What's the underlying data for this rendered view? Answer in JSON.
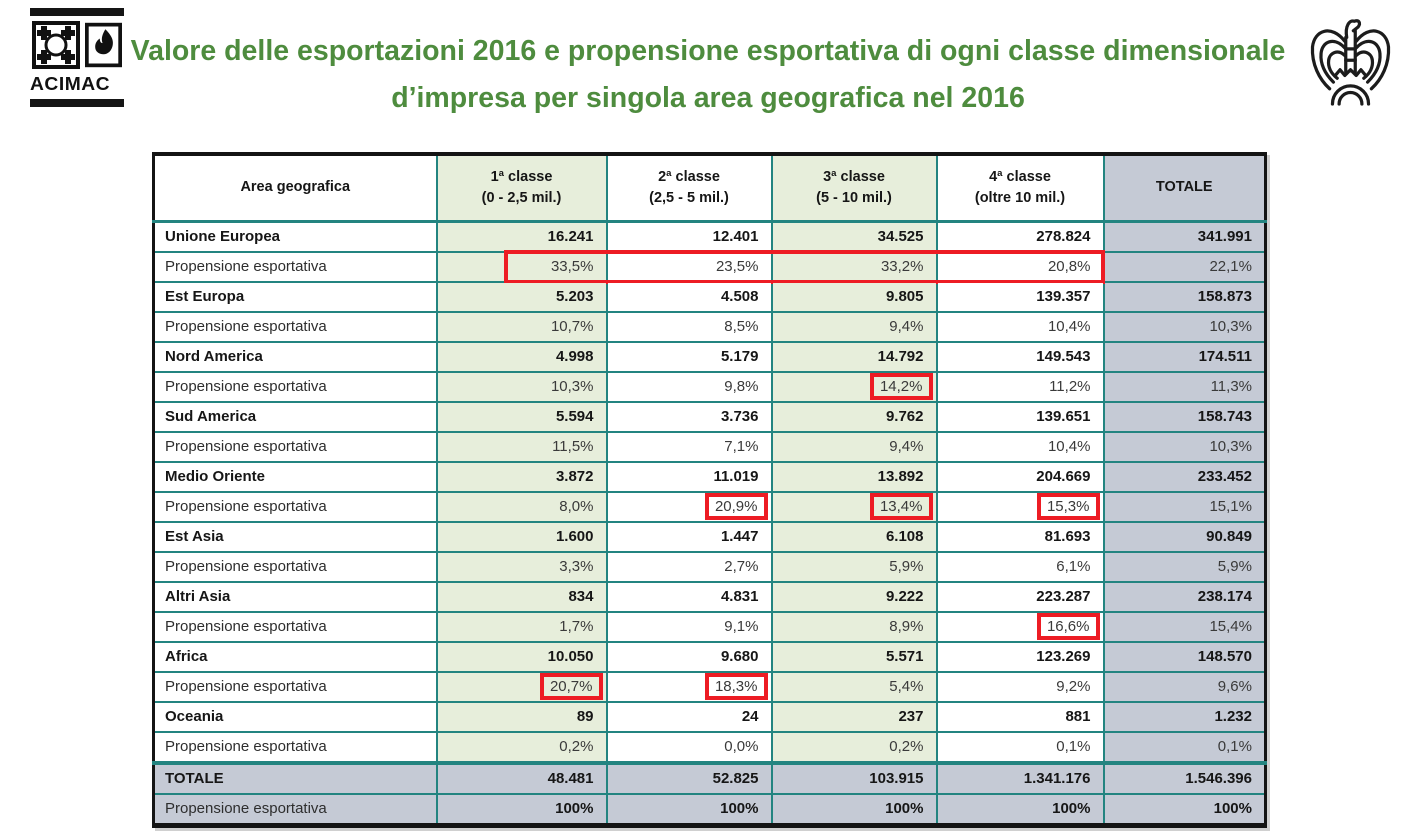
{
  "title": "Valore delle esportazioni 2016 e propensione esportativa di ogni classe dimensionale d’impresa per singola area geografica nel 2016",
  "branding": {
    "acimac_label": "ACIMAC",
    "acimac_icon": "acimac-tile-and-flame-logo",
    "confindustria_icon": "confindustria-eagle-logo"
  },
  "colors": {
    "title_green": "#4e8c3e",
    "cell_green": "#e7eedb",
    "cell_gray": "#c5cad5",
    "grid_teal": "#238480",
    "highlight_red": "#ed1c24"
  },
  "table": {
    "columns": [
      {
        "label": "Area geografica",
        "sub": ""
      },
      {
        "label": "1ª classe",
        "sub": "(0 - 2,5 mil.)"
      },
      {
        "label": "2ª classe",
        "sub": "(2,5 - 5 mil.)"
      },
      {
        "label": "3ª classe",
        "sub": "(5 - 10 mil.)"
      },
      {
        "label": "4ª classe",
        "sub": "(oltre 10 mil.)"
      },
      {
        "label": "TOTALE",
        "sub": ""
      }
    ],
    "propensity_label": "Propensione esportativa",
    "areas": [
      {
        "name": "Unione Europea",
        "values": [
          "16.241",
          "12.401",
          "34.525",
          "278.824",
          "341.991"
        ],
        "propensity": [
          "33,5%",
          "23,5%",
          "33,2%",
          "20,8%",
          "22,1%"
        ],
        "highlight_span": true,
        "highlights": []
      },
      {
        "name": "Est Europa",
        "values": [
          "5.203",
          "4.508",
          "9.805",
          "139.357",
          "158.873"
        ],
        "propensity": [
          "10,7%",
          "8,5%",
          "9,4%",
          "10,4%",
          "10,3%"
        ],
        "highlight_span": false,
        "highlights": []
      },
      {
        "name": "Nord America",
        "values": [
          "4.998",
          "5.179",
          "14.792",
          "149.543",
          "174.511"
        ],
        "propensity": [
          "10,3%",
          "9,8%",
          "14,2%",
          "11,2%",
          "11,3%"
        ],
        "highlight_span": false,
        "highlights": [
          2
        ]
      },
      {
        "name": "Sud America",
        "values": [
          "5.594",
          "3.736",
          "9.762",
          "139.651",
          "158.743"
        ],
        "propensity": [
          "11,5%",
          "7,1%",
          "9,4%",
          "10,4%",
          "10,3%"
        ],
        "highlight_span": false,
        "highlights": []
      },
      {
        "name": "Medio Oriente",
        "values": [
          "3.872",
          "11.019",
          "13.892",
          "204.669",
          "233.452"
        ],
        "propensity": [
          "8,0%",
          "20,9%",
          "13,4%",
          "15,3%",
          "15,1%"
        ],
        "highlight_span": false,
        "highlights": [
          1,
          2,
          3
        ]
      },
      {
        "name": "Est Asia",
        "values": [
          "1.600",
          "1.447",
          "6.108",
          "81.693",
          "90.849"
        ],
        "propensity": [
          "3,3%",
          "2,7%",
          "5,9%",
          "6,1%",
          "5,9%"
        ],
        "highlight_span": false,
        "highlights": []
      },
      {
        "name": "Altri Asia",
        "values": [
          "834",
          "4.831",
          "9.222",
          "223.287",
          "238.174"
        ],
        "propensity": [
          "1,7%",
          "9,1%",
          "8,9%",
          "16,6%",
          "15,4%"
        ],
        "highlight_span": false,
        "highlights": [
          3
        ]
      },
      {
        "name": "Africa",
        "values": [
          "10.050",
          "9.680",
          "5.571",
          "123.269",
          "148.570"
        ],
        "propensity": [
          "20,7%",
          "18,3%",
          "5,4%",
          "9,2%",
          "9,6%"
        ],
        "highlight_span": false,
        "highlights": [
          0,
          1
        ]
      },
      {
        "name": "Oceania",
        "values": [
          "89",
          "24",
          "237",
          "881",
          "1.232"
        ],
        "propensity": [
          "0,2%",
          "0,0%",
          "0,2%",
          "0,1%",
          "0,1%"
        ],
        "highlight_span": false,
        "highlights": []
      }
    ],
    "total": {
      "name": "TOTALE",
      "values": [
        "48.481",
        "52.825",
        "103.915",
        "1.341.176",
        "1.546.396"
      ],
      "propensity": [
        "100%",
        "100%",
        "100%",
        "100%",
        "100%"
      ]
    }
  }
}
